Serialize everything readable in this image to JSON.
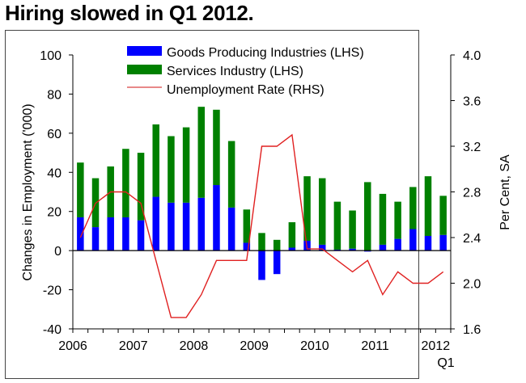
{
  "title": "Hiring slowed in Q1 2012.",
  "chart_data": {
    "type": "bar",
    "subtype": "stacked bar with line on secondary axis",
    "title": "Hiring slowed in Q1 2012.",
    "ylabel": "Changes in Employment ('000)",
    "y2label": "Per Cent, SA",
    "ylim": [
      -40,
      100
    ],
    "y_ticks": [
      "100",
      "80",
      "60",
      "40",
      "20",
      "0",
      "-20",
      "-40"
    ],
    "y_tick_values": [
      100,
      80,
      60,
      40,
      20,
      0,
      -20,
      -40
    ],
    "y2lim": [
      1.6,
      4.0
    ],
    "y2_ticks": [
      "4.0",
      "3.6",
      "3.2",
      "2.8",
      "2.4",
      "2.0",
      "1.6"
    ],
    "y2_tick_values": [
      4.0,
      3.6,
      3.2,
      2.8,
      2.4,
      2.0,
      1.6
    ],
    "x_labels": [
      "2006",
      "2007",
      "2008",
      "2009",
      "2010",
      "2011",
      "2012"
    ],
    "x_sublabel": "Q1",
    "categories": [
      "2006Q1",
      "2006Q2",
      "2006Q3",
      "2006Q4",
      "2007Q1",
      "2007Q2",
      "2007Q3",
      "2007Q4",
      "2008Q1",
      "2008Q2",
      "2008Q3",
      "2008Q4",
      "2009Q1",
      "2009Q2",
      "2009Q3",
      "2009Q4",
      "2010Q1",
      "2010Q2",
      "2010Q3",
      "2010Q4",
      "2011Q1",
      "2011Q2",
      "2011Q3",
      "2011Q4",
      "2012Q1"
    ],
    "legend_position": "top-center",
    "grid": false,
    "series": [
      {
        "name": "Goods Producing Industries (LHS)",
        "type": "bar",
        "axis": "left",
        "color": "#0000ff",
        "values": [
          17,
          12,
          17,
          17,
          15.5,
          27.5,
          24.5,
          24.5,
          27,
          33.5,
          22,
          4,
          -15,
          -12,
          1.5,
          5,
          3,
          0.5,
          1,
          -0.5,
          3,
          6,
          11,
          7.5,
          8
        ]
      },
      {
        "name": "Services Industry (LHS)",
        "type": "bar",
        "axis": "left",
        "color": "#008000",
        "values": [
          28,
          25,
          26,
          35,
          34.5,
          37,
          34,
          38.5,
          46.5,
          38.5,
          34,
          17,
          9,
          5.5,
          13,
          33,
          34,
          24.5,
          19.5,
          35,
          26,
          19,
          21.5,
          30.5,
          20
        ]
      },
      {
        "name": "Unemployment Rate (RHS)",
        "type": "line",
        "axis": "right",
        "color": "#e02020",
        "values": [
          2.4,
          2.7,
          2.8,
          2.8,
          2.7,
          2.2,
          1.7,
          1.7,
          1.9,
          2.2,
          2.2,
          2.2,
          3.2,
          3.2,
          3.3,
          2.3,
          2.3,
          2.2,
          2.1,
          2.2,
          1.9,
          2.1,
          2.0,
          2.0,
          2.1
        ]
      }
    ]
  }
}
